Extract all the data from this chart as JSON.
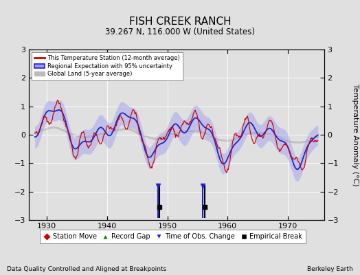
{
  "title": "FISH CREEK RANCH",
  "subtitle": "39.267 N, 116.000 W (United States)",
  "xlabel_note": "Data Quality Controlled and Aligned at Breakpoints",
  "credit": "Berkeley Earth",
  "ylabel": "Temperature Anomaly (°C)",
  "xlim": [
    1927,
    1976
  ],
  "ylim": [
    -3,
    3
  ],
  "yticks": [
    -3,
    -2,
    -1,
    0,
    1,
    2,
    3
  ],
  "xticks": [
    1930,
    1940,
    1950,
    1960,
    1970
  ],
  "bg_color": "#e0e0e0",
  "plot_bg": "#e0e0e0",
  "red_color": "#cc0000",
  "blue_color": "#2222cc",
  "blue_fill": "#9999ee",
  "gray_color": "#bbbbbb",
  "empirical_break_years": [
    1948.7,
    1956.2
  ],
  "tobs_change_years": [
    1948.4,
    1955.9
  ],
  "figwidth": 5.24,
  "figheight": 4.0,
  "dpi": 100
}
